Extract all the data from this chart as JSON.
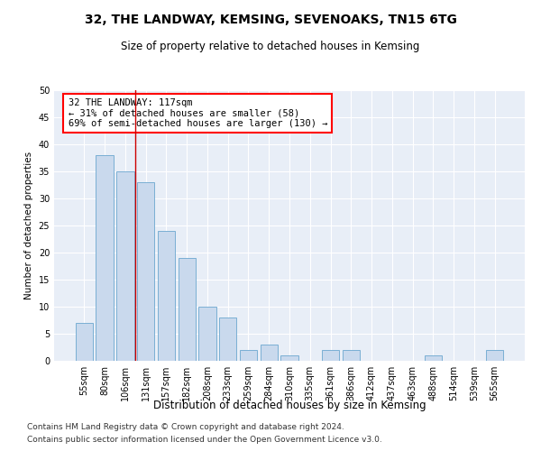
{
  "title": "32, THE LANDWAY, KEMSING, SEVENOAKS, TN15 6TG",
  "subtitle": "Size of property relative to detached houses in Kemsing",
  "xlabel": "Distribution of detached houses by size in Kemsing",
  "ylabel": "Number of detached properties",
  "categories": [
    "55sqm",
    "80sqm",
    "106sqm",
    "131sqm",
    "157sqm",
    "182sqm",
    "208sqm",
    "233sqm",
    "259sqm",
    "284sqm",
    "310sqm",
    "335sqm",
    "361sqm",
    "386sqm",
    "412sqm",
    "437sqm",
    "463sqm",
    "488sqm",
    "514sqm",
    "539sqm",
    "565sqm"
  ],
  "values": [
    7,
    38,
    35,
    33,
    24,
    19,
    10,
    8,
    2,
    3,
    1,
    0,
    2,
    2,
    0,
    0,
    0,
    1,
    0,
    0,
    2
  ],
  "bar_color": "#c9d9ed",
  "bar_edge_color": "#7aafd4",
  "red_line_index": 2.5,
  "annotation_text": "32 THE LANDWAY: 117sqm\n← 31% of detached houses are smaller (58)\n69% of semi-detached houses are larger (130) →",
  "annotation_box_color": "white",
  "annotation_box_edge_color": "red",
  "red_line_color": "#cc0000",
  "ylim": [
    0,
    50
  ],
  "yticks": [
    0,
    5,
    10,
    15,
    20,
    25,
    30,
    35,
    40,
    45,
    50
  ],
  "background_color": "#e8eef7",
  "footer_line1": "Contains HM Land Registry data © Crown copyright and database right 2024.",
  "footer_line2": "Contains public sector information licensed under the Open Government Licence v3.0.",
  "title_fontsize": 10,
  "subtitle_fontsize": 8.5,
  "xlabel_fontsize": 8.5,
  "ylabel_fontsize": 7.5,
  "tick_fontsize": 7,
  "annotation_fontsize": 7.5,
  "footer_fontsize": 6.5
}
